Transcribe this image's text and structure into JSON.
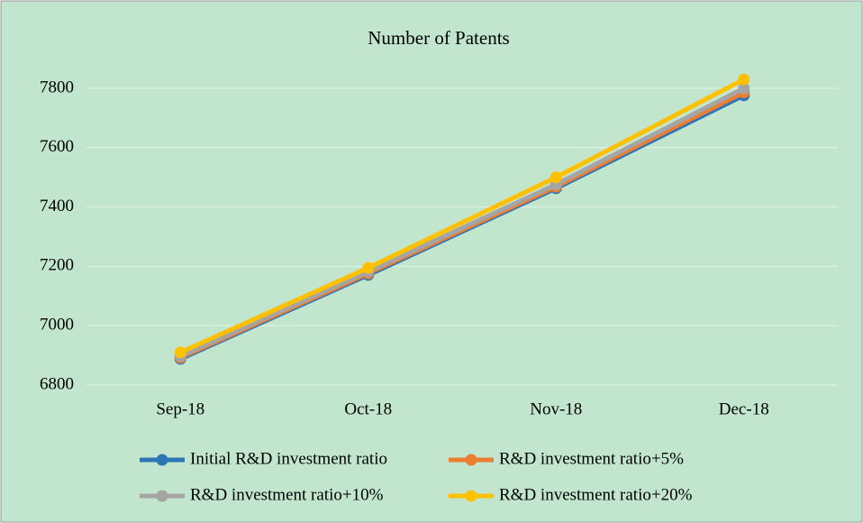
{
  "chart_data": {
    "type": "line",
    "title": "Number of Patents",
    "categories": [
      "Sep-18",
      "Oct-18",
      "Nov-18",
      "Dec-18"
    ],
    "series": [
      {
        "name": "Initial R&D investment ratio",
        "color": "#2e75b6",
        "values": [
          6888,
          7171,
          7463,
          7776
        ]
      },
      {
        "name": "R&D investment ratio+5%",
        "color": "#ed7d31",
        "values": [
          6892,
          7176,
          7468,
          7786
        ]
      },
      {
        "name": "R&D investment ratio+10%",
        "color": "#a5a5a5",
        "values": [
          6897,
          7182,
          7476,
          7800
        ]
      },
      {
        "name": "R&D investment ratio+20%",
        "color": "#ffc000",
        "values": [
          6910,
          7195,
          7500,
          7830
        ]
      }
    ],
    "ylim": [
      6800,
      7900
    ],
    "yticks": [
      6800,
      7000,
      7200,
      7400,
      7600,
      7800
    ],
    "grid": true
  }
}
